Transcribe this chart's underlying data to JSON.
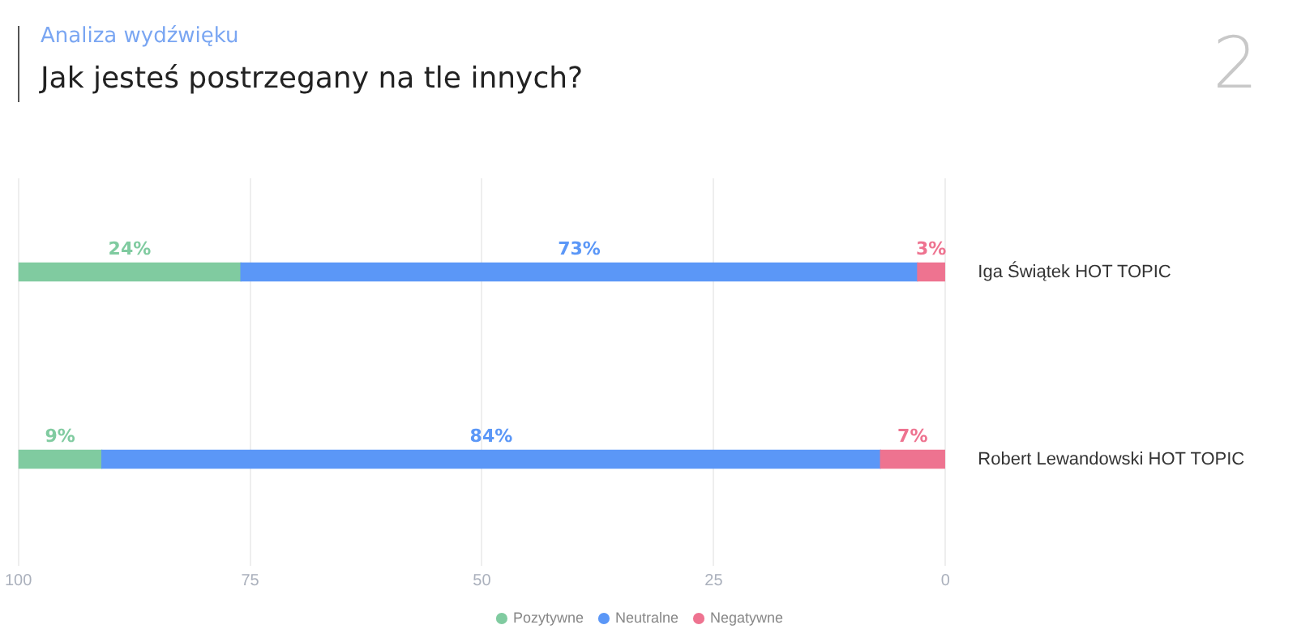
{
  "chart_data": {
    "type": "bar",
    "orientation": "horizontal",
    "stacked": true,
    "subtitle": "Analiza wydźwięku",
    "title": "Jak jesteś postrzegany na tle innych?",
    "annotations": [
      "2"
    ],
    "categories": [
      "Iga Świątek HOT TOPIC",
      "Robert Lewandowski HOT TOPIC"
    ],
    "series": [
      {
        "name": "Negatywne",
        "color": "#ee7390",
        "values": [
          3,
          7
        ],
        "value_labels": [
          "3%",
          "7%"
        ]
      },
      {
        "name": "Neutralne",
        "color": "#5b97f7",
        "values": [
          73,
          84
        ],
        "value_labels": [
          "73%",
          "84%"
        ]
      },
      {
        "name": "Pozytywne",
        "color": "#80cba0",
        "values": [
          24,
          9
        ],
        "value_labels": [
          "24%",
          "9%"
        ]
      }
    ],
    "xlim": [
      100,
      0
    ],
    "xticks": [
      100,
      75,
      50,
      25,
      0
    ],
    "grid": "x",
    "legend": "bottom"
  }
}
